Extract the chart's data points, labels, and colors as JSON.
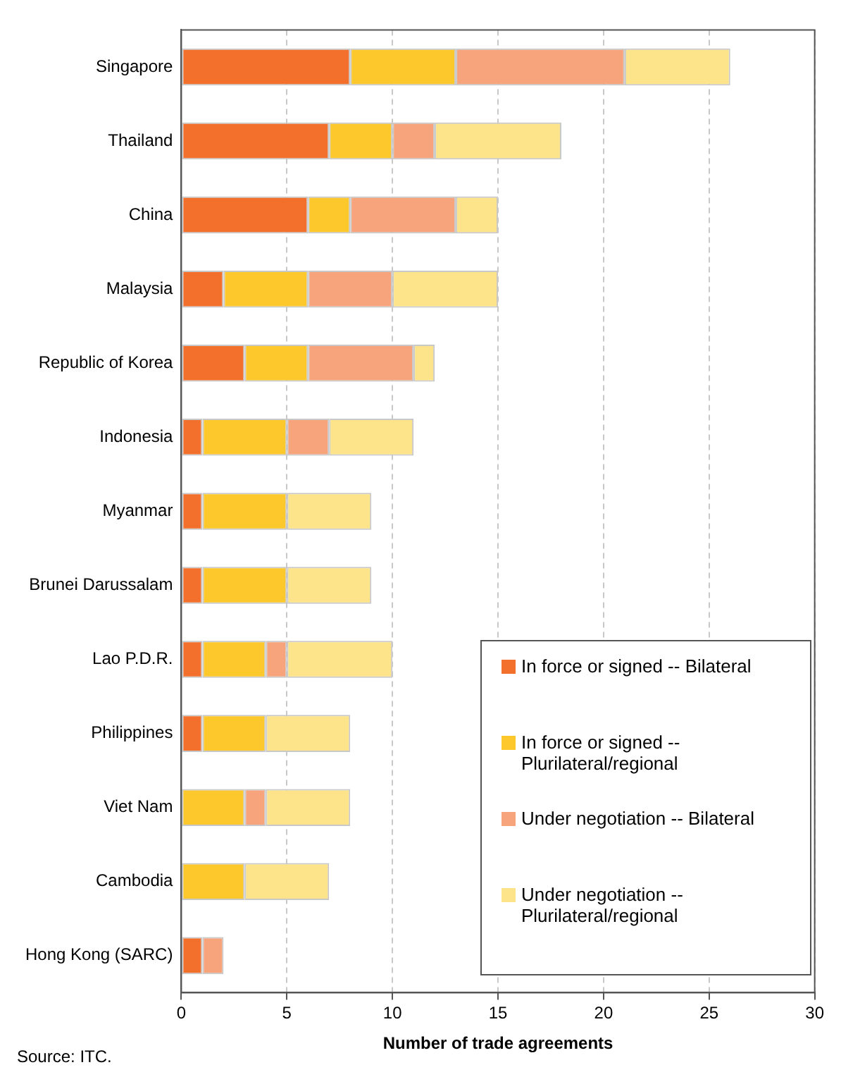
{
  "chart_data": {
    "type": "bar",
    "orientation": "horizontal",
    "stacked": true,
    "categories": [
      "Singapore",
      "Thailand",
      "China",
      "Malaysia",
      "Republic of Korea",
      "Indonesia",
      "Myanmar",
      "Brunei Darussalam",
      "Lao P.D.R.",
      "Philippines",
      "Viet Nam",
      "Cambodia",
      "Hong Kong (SARC)"
    ],
    "series": [
      {
        "name": "In force or signed -- Bilateral",
        "color": "#f26f2c",
        "values": [
          8,
          7,
          6,
          2,
          3,
          1,
          1,
          1,
          1,
          1,
          0,
          0,
          1
        ]
      },
      {
        "name": "In force or signed -- Plurilateral/regional",
        "color": "#fdc82b",
        "values": [
          5,
          3,
          2,
          4,
          3,
          4,
          4,
          4,
          3,
          3,
          3,
          3,
          0
        ]
      },
      {
        "name": "Under negotiation -- Bilateral",
        "color": "#f7a47c",
        "values": [
          8,
          2,
          5,
          4,
          5,
          2,
          0,
          0,
          1,
          0,
          1,
          0,
          1
        ]
      },
      {
        "name": "Under negotiation -- Plurilateral/regional",
        "color": "#fde38a",
        "values": [
          5,
          6,
          2,
          5,
          1,
          4,
          4,
          4,
          5,
          4,
          4,
          4,
          0
        ]
      }
    ],
    "xlim": [
      0,
      30
    ],
    "xticks": [
      0,
      5,
      10,
      15,
      20,
      25,
      30
    ],
    "xlabel": "Number of trade agreements",
    "grid": "x",
    "legend": "bottom right",
    "annotations": [
      "Source: ITC."
    ]
  }
}
